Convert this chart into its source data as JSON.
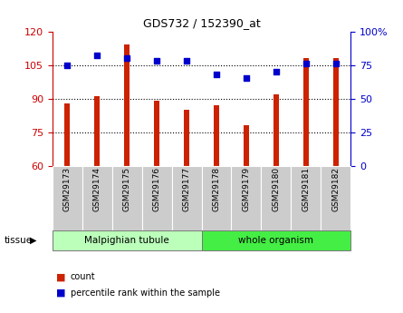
{
  "title": "GDS732 / 152390_at",
  "samples": [
    "GSM29173",
    "GSM29174",
    "GSM29175",
    "GSM29176",
    "GSM29177",
    "GSM29178",
    "GSM29179",
    "GSM29180",
    "GSM29181",
    "GSM29182"
  ],
  "counts": [
    88,
    91,
    114,
    89,
    85,
    87,
    78,
    92,
    108,
    108
  ],
  "percentiles": [
    75,
    82,
    80,
    78,
    78,
    68,
    65,
    70,
    76,
    76
  ],
  "tissue_groups": [
    {
      "label": "Malpighian tubule",
      "start": 0,
      "end": 5,
      "color": "#bbffbb"
    },
    {
      "label": "whole organism",
      "start": 5,
      "end": 10,
      "color": "#44ee44"
    }
  ],
  "ylim_left": [
    60,
    120
  ],
  "ylim_right": [
    0,
    100
  ],
  "yticks_left": [
    60,
    75,
    90,
    105,
    120
  ],
  "yticks_right": [
    0,
    25,
    50,
    75,
    100
  ],
  "bar_color": "#cc2200",
  "dot_color": "#0000cc",
  "bar_width": 0.18,
  "dot_size": 25,
  "legend_bar_label": "count",
  "legend_dot_label": "percentile rank within the sample",
  "left_axis_color": "#cc0000",
  "right_axis_color": "#0000cc",
  "tick_bg_color": "#cccccc",
  "grid_yticks": [
    75,
    90,
    105
  ]
}
